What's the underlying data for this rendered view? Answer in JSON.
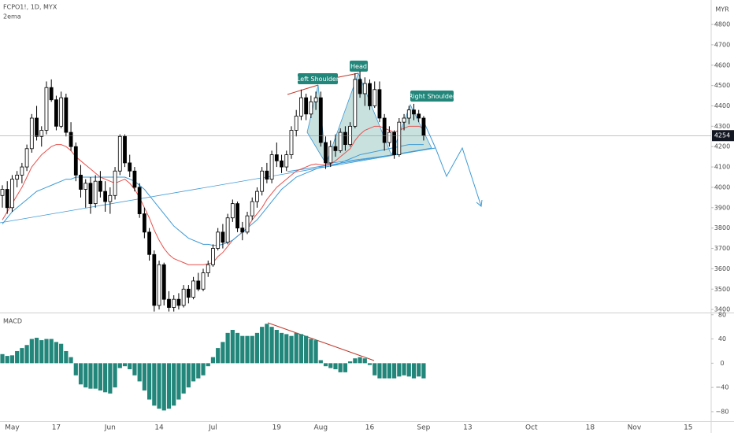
{
  "chart_data": [
    {
      "type": "candlestick",
      "title": "FCPO1!, 1D, MYX",
      "subtitle": "2ema",
      "y_label": "MYR",
      "categories": [
        null,
        null,
        "May",
        null,
        null,
        null,
        null,
        null,
        null,
        null,
        null,
        "17",
        null,
        null,
        null,
        null,
        null,
        null,
        null,
        null,
        null,
        null,
        "Jun",
        null,
        null,
        null,
        null,
        null,
        null,
        null,
        null,
        null,
        "14",
        null,
        null,
        null,
        null,
        null,
        null,
        null,
        null,
        null,
        null,
        "Jul",
        null,
        null,
        null,
        null,
        null,
        null,
        null,
        null,
        null,
        null,
        null,
        null,
        "19",
        null,
        null,
        null,
        null,
        null,
        null,
        null,
        null,
        "Aug",
        null,
        null,
        null,
        null,
        null,
        null,
        null,
        null,
        null,
        "16",
        null,
        null,
        null,
        null,
        null,
        null,
        null,
        null,
        null,
        null,
        "Sep",
        null,
        null,
        null,
        null,
        null,
        null,
        null,
        null,
        "13",
        null,
        null,
        null,
        null,
        null,
        null,
        null,
        null,
        null,
        null,
        null,
        null,
        "Oct",
        null,
        null,
        null,
        null,
        null,
        null,
        null,
        null,
        null,
        null,
        null,
        "18",
        null,
        null,
        null,
        null,
        null,
        null,
        null,
        null,
        "Nov",
        null,
        null,
        null,
        null,
        null,
        null,
        null,
        null,
        null,
        null,
        "15",
        null,
        null,
        null,
        null
      ],
      "open": [
        3960,
        3990,
        3900,
        4040,
        4060,
        4100,
        4190,
        4340,
        4250,
        4280,
        4490,
        4430,
        4300,
        4440,
        4270,
        4200,
        4060,
        3990,
        4020,
        3920,
        4030,
        3980,
        3930,
        3960,
        4080,
        4250,
        4120,
        4080,
        4000,
        3870,
        3780,
        3670,
        3420,
        3620,
        3450,
        3410,
        3450,
        3420,
        3500,
        3460,
        3540,
        3500,
        3580,
        3620,
        3700,
        3780,
        3730,
        3850,
        3920,
        3800,
        3780,
        3860,
        3930,
        3980,
        4080,
        4040,
        4160,
        4130,
        4100,
        4160,
        4280,
        4350,
        4440,
        4360,
        4420,
        4440,
        4220,
        4120,
        4200,
        4180,
        4270,
        4210,
        4300,
        4530,
        4460,
        4510,
        4400,
        4480,
        4340,
        4220,
        4270,
        4160,
        4320,
        4340,
        4380,
        4360,
        4340,
        null,
        null,
        null,
        null,
        null,
        null,
        null,
        null,
        null,
        null,
        null,
        null,
        null,
        null,
        null,
        null,
        null,
        null,
        null,
        null,
        null,
        null,
        null,
        null,
        null,
        null,
        null,
        null,
        null,
        null,
        null,
        null,
        null,
        null,
        null,
        null,
        null,
        null,
        null,
        null,
        null,
        null,
        null,
        null,
        null,
        null,
        null,
        null,
        null,
        null,
        null,
        null,
        null,
        null,
        null,
        null,
        null,
        null
      ],
      "high": [
        4010,
        4030,
        4060,
        4080,
        4120,
        4210,
        4360,
        4400,
        4300,
        4520,
        4530,
        4450,
        4470,
        4460,
        4320,
        4220,
        4110,
        4040,
        4050,
        4060,
        4080,
        4030,
        4000,
        4100,
        4260,
        4260,
        4160,
        4100,
        4020,
        3900,
        3800,
        3690,
        3640,
        3630,
        3490,
        3470,
        3480,
        3520,
        3520,
        3560,
        3580,
        3600,
        3640,
        3720,
        3800,
        3820,
        3870,
        3940,
        3930,
        3830,
        3880,
        3950,
        4000,
        4100,
        4120,
        4180,
        4220,
        4160,
        4180,
        4300,
        4380,
        4480,
        4460,
        4450,
        4470,
        4470,
        4250,
        4230,
        4260,
        4290,
        4300,
        4320,
        4560,
        4570,
        4540,
        4530,
        4520,
        4520,
        4360,
        4300,
        4280,
        4340,
        4360,
        4400,
        4410,
        4380,
        4350,
        null,
        null,
        null,
        null,
        null,
        null,
        null,
        null,
        null,
        null,
        null,
        null,
        null,
        null,
        null,
        null,
        null,
        null,
        null,
        null,
        null,
        null,
        null,
        null,
        null,
        null,
        null,
        null,
        null,
        null,
        null,
        null,
        null,
        null,
        null,
        null,
        null,
        null,
        null,
        null,
        null,
        null,
        null,
        null,
        null,
        null,
        null,
        null,
        null,
        null,
        null,
        null,
        null,
        null,
        null,
        null,
        null,
        null
      ],
      "low": [
        3900,
        3870,
        3880,
        4000,
        4020,
        4080,
        4170,
        4230,
        4200,
        4260,
        4420,
        4280,
        4290,
        4250,
        4180,
        4030,
        3950,
        3900,
        3870,
        3900,
        3950,
        3880,
        3870,
        3940,
        4060,
        4100,
        4050,
        3980,
        3850,
        3750,
        3640,
        3390,
        3400,
        3420,
        3390,
        3390,
        3400,
        3410,
        3430,
        3450,
        3490,
        3490,
        3560,
        3610,
        3690,
        3700,
        3720,
        3830,
        3780,
        3740,
        3770,
        3840,
        3900,
        3960,
        4020,
        4020,
        4100,
        4070,
        4080,
        4140,
        4250,
        4330,
        4330,
        4340,
        4380,
        4200,
        4090,
        4100,
        4150,
        4170,
        4180,
        4200,
        4290,
        4440,
        4400,
        4380,
        4390,
        4320,
        4180,
        4200,
        4140,
        4150,
        4280,
        4310,
        4330,
        4320,
        4230,
        null,
        null,
        null,
        null,
        null,
        null,
        null,
        null,
        null,
        null,
        null,
        null,
        null,
        null,
        null,
        null,
        null,
        null,
        null,
        null,
        null,
        null,
        null,
        null,
        null,
        null,
        null,
        null,
        null,
        null,
        null,
        null,
        null,
        null,
        null,
        null,
        null,
        null,
        null,
        null,
        null,
        null,
        null,
        null,
        null,
        null,
        null,
        null,
        null,
        null,
        null,
        null,
        null,
        null,
        null,
        null,
        null,
        null
      ],
      "close": [
        3990,
        3900,
        4040,
        4060,
        4100,
        4190,
        4340,
        4250,
        4280,
        4490,
        4430,
        4300,
        4440,
        4270,
        4200,
        4060,
        3990,
        4020,
        3920,
        4030,
        3980,
        3930,
        3960,
        4080,
        4250,
        4120,
        4080,
        4000,
        3870,
        3780,
        3670,
        3420,
        3620,
        3450,
        3410,
        3450,
        3420,
        3500,
        3460,
        3540,
        3500,
        3580,
        3620,
        3700,
        3780,
        3730,
        3850,
        3920,
        3800,
        3780,
        3860,
        3930,
        3980,
        4080,
        4040,
        4160,
        4130,
        4100,
        4160,
        4280,
        4350,
        4440,
        4360,
        4420,
        4440,
        4220,
        4120,
        4200,
        4180,
        4270,
        4210,
        4300,
        4530,
        4460,
        4510,
        4400,
        4480,
        4340,
        4220,
        4270,
        4160,
        4320,
        4340,
        4380,
        4360,
        4340,
        4254,
        null,
        null,
        null,
        null,
        null,
        null,
        null,
        null,
        null,
        null,
        null,
        null,
        null,
        null,
        null,
        null,
        null,
        null,
        null,
        null,
        null,
        null,
        null,
        null,
        null,
        null,
        null,
        null,
        null,
        null,
        null,
        null,
        null,
        null,
        null,
        null,
        null,
        null,
        null,
        null,
        null,
        null,
        null,
        null,
        null,
        null,
        null,
        null,
        null,
        null,
        null,
        null,
        null,
        null,
        null,
        null,
        null,
        null
      ],
      "series": [
        {
          "color": "#e8504c",
          "values": [
            3840,
            3880,
            3920,
            3960,
            4000,
            4050,
            4100,
            4130,
            4160,
            4180,
            4200,
            4210,
            4210,
            4200,
            4180,
            4150,
            4130,
            4110,
            4090,
            4070,
            4050,
            4040,
            4030,
            4020,
            4030,
            4040,
            4020,
            3990,
            3950,
            3900,
            3850,
            3790,
            3740,
            3700,
            3670,
            3650,
            3640,
            3630,
            3620,
            3620,
            3620,
            3620,
            3625,
            3630,
            3660,
            3680,
            3710,
            3740,
            3760,
            3780,
            3800,
            3840,
            3870,
            3900,
            3940,
            3970,
            4000,
            4020,
            4040,
            4060,
            4080,
            4090,
            4100,
            4110,
            4115,
            4110,
            4110,
            4115,
            4130,
            4150,
            4170,
            4190,
            4230,
            4260,
            4280,
            4290,
            4300,
            4300,
            4290,
            4280,
            4270,
            4280,
            4290,
            4300,
            4300,
            4300,
            4290,
            null,
            null,
            null,
            null,
            null,
            null,
            null,
            null,
            null,
            null,
            null,
            null,
            null,
            null,
            null,
            null,
            null,
            null,
            null,
            null,
            null,
            null,
            null,
            null,
            null,
            null,
            null,
            null,
            null,
            null,
            null,
            null,
            null,
            null,
            null,
            null,
            null,
            null,
            null,
            null,
            null,
            null,
            null,
            null,
            null,
            null,
            null,
            null,
            null,
            null,
            null,
            null,
            null,
            null,
            null,
            null,
            null,
            null
          ]
        },
        {
          "color": "#3d9ad6",
          "values": [
            3820,
            3850,
            3880,
            3900,
            3920,
            3940,
            3960,
            3980,
            3990,
            4000,
            4010,
            4020,
            4030,
            4040,
            4040,
            4050,
            4050,
            4050,
            4050,
            4050,
            4050,
            4050,
            4050,
            4050,
            4050,
            4050,
            4040,
            4030,
            4010,
            3990,
            3960,
            3930,
            3900,
            3870,
            3840,
            3810,
            3790,
            3770,
            3750,
            3740,
            3730,
            3720,
            3720,
            3715,
            3715,
            3720,
            3730,
            3740,
            3760,
            3780,
            3800,
            3820,
            3840,
            3870,
            3900,
            3930,
            3960,
            3990,
            4010,
            4030,
            4050,
            4060,
            4070,
            4080,
            4090,
            4100,
            4100,
            4105,
            4110,
            4120,
            4130,
            4140,
            4150,
            4160,
            4165,
            4170,
            4175,
            4180,
            4185,
            4190,
            4195,
            4200,
            4205,
            4210,
            4210,
            4210,
            4210,
            null,
            null,
            null,
            null,
            null,
            null,
            null,
            null,
            null,
            null,
            null,
            null,
            null,
            null,
            null,
            null,
            null,
            null,
            null,
            null,
            null,
            null,
            null,
            null,
            null,
            null,
            null,
            null,
            null,
            null,
            null,
            null,
            null,
            null,
            null,
            null,
            null,
            null,
            null,
            null,
            null,
            null,
            null,
            null,
            null,
            null,
            null,
            null,
            null,
            null,
            null,
            null,
            null,
            null,
            null,
            null,
            null,
            null
          ]
        }
      ],
      "ylim": [
        3385,
        4920
      ],
      "yticks": [
        3400,
        3500,
        3600,
        3700,
        3800,
        3900,
        4000,
        4100,
        4200,
        4300,
        4400,
        4500,
        4600,
        4700,
        4800
      ],
      "last_price": 4254,
      "annotations": [
        "Left Shoulder",
        "Head",
        "Right Shoulder"
      ]
    },
    {
      "type": "bar",
      "title": "MACD",
      "color": "#22867a",
      "values": [
        15,
        12,
        13,
        20,
        25,
        30,
        40,
        42,
        38,
        40,
        40,
        35,
        32,
        20,
        10,
        -20,
        -35,
        -40,
        -42,
        -42,
        -45,
        -48,
        -50,
        -40,
        -8,
        -5,
        -10,
        -20,
        -30,
        -45,
        -60,
        -70,
        -75,
        -78,
        -75,
        -70,
        -60,
        -50,
        -40,
        -30,
        -25,
        -20,
        -5,
        10,
        25,
        35,
        50,
        55,
        50,
        45,
        45,
        45,
        50,
        60,
        65,
        60,
        55,
        50,
        48,
        45,
        50,
        48,
        45,
        40,
        38,
        5,
        -5,
        -8,
        -10,
        -15,
        -15,
        3,
        8,
        10,
        8,
        -3,
        -20,
        -25,
        -25,
        -25,
        -25,
        -22,
        -20,
        -22,
        -25,
        -22,
        -25,
        null,
        null,
        null,
        null,
        null,
        null,
        null,
        null,
        null,
        null,
        null,
        null,
        null,
        null,
        null,
        null,
        null,
        null,
        null,
        null,
        null,
        null,
        null,
        null,
        null,
        null,
        null,
        null,
        null,
        null,
        null,
        null,
        null,
        null,
        null,
        null,
        null,
        null,
        null,
        null,
        null,
        null,
        null,
        null,
        null,
        null,
        null,
        null,
        null,
        null,
        null,
        null,
        null,
        null,
        null,
        null,
        null,
        null
      ],
      "ylim": [
        -97,
        81
      ],
      "yticks": [
        80,
        40,
        0,
        {
          "value": -40,
          "label": "−40"
        },
        {
          "value": -80,
          "label": "−80"
        }
      ]
    }
  ]
}
